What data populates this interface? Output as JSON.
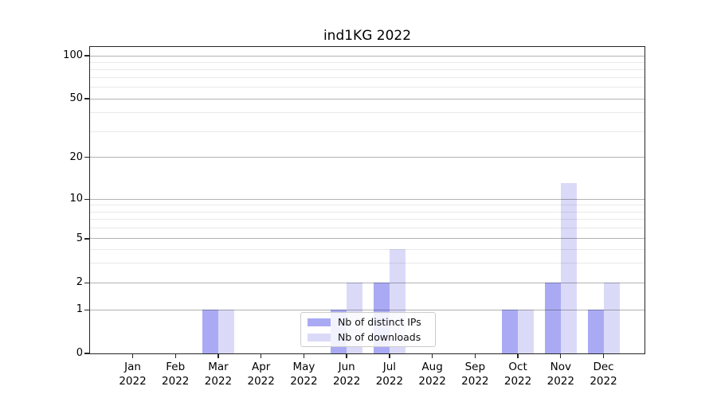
{
  "chart_data": {
    "type": "bar",
    "title": "ind1KG 2022",
    "categories": [
      "Jan 2022",
      "Feb 2022",
      "Mar 2022",
      "Apr 2022",
      "May 2022",
      "Jun 2022",
      "Jul 2022",
      "Aug 2022",
      "Sep 2022",
      "Oct 2022",
      "Nov 2022",
      "Dec 2022"
    ],
    "series": [
      {
        "name": "Nb of distinct IPs",
        "color": "#aaaaf4",
        "values": [
          0,
          0,
          1,
          0,
          0,
          1,
          2,
          0,
          0,
          1,
          2,
          1
        ]
      },
      {
        "name": "Nb of downloads",
        "color": "#dadaf8",
        "values": [
          0,
          0,
          1,
          0,
          0,
          2,
          4,
          0,
          0,
          1,
          13,
          2
        ]
      }
    ],
    "xlabel": "",
    "ylabel": "",
    "yscale": "symlog",
    "ylim": [
      0,
      115
    ],
    "y_tick_labels": [
      "0",
      "1",
      "2",
      "5",
      "10",
      "20",
      "50",
      "100"
    ],
    "y_minor_ticks": [
      3,
      4,
      6,
      7,
      8,
      9,
      30,
      40,
      60,
      70,
      80,
      90
    ],
    "grid": "horizontal",
    "legend_position": "lower-center",
    "colors": {
      "major_grid": "#b2b2b2",
      "minor_grid": "#e9e9e9",
      "axis": "#262626",
      "legend_border": "#cccccc"
    }
  }
}
